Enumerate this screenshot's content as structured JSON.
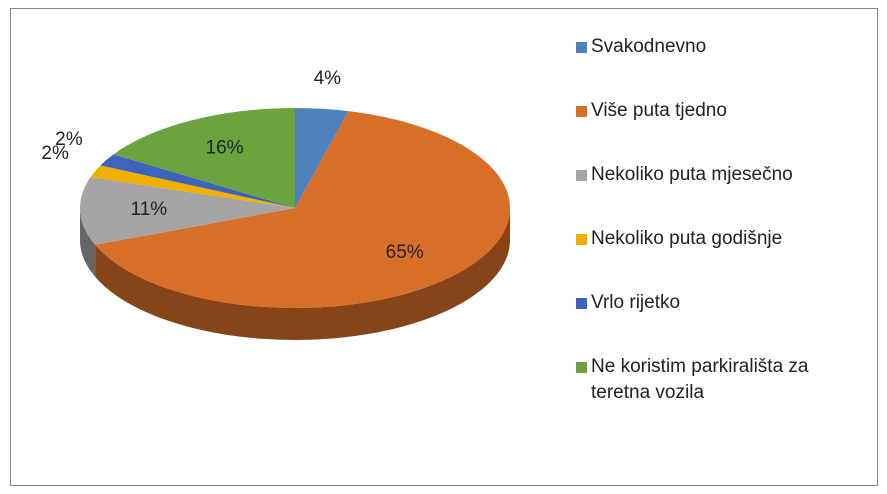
{
  "chart_data": {
    "type": "pie3d",
    "categories": [
      "Svakodnevno",
      "Više puta tjedno",
      "Nekoliko puta mjesečno",
      "Nekoliko puta godišnje",
      "Vrlo rijetko",
      "Ne koristim parkirališta za teretna vozila"
    ],
    "values": [
      4,
      65,
      11,
      2,
      2,
      16
    ],
    "value_labels": [
      "4%",
      "65%",
      "11%",
      "2%",
      "2%",
      "16%"
    ],
    "colors": [
      "#4f81bd",
      "#d86f29",
      "#a5a5a5",
      "#f0b000",
      "#3d63bd",
      "#6ba43e"
    ],
    "legend": "right"
  }
}
